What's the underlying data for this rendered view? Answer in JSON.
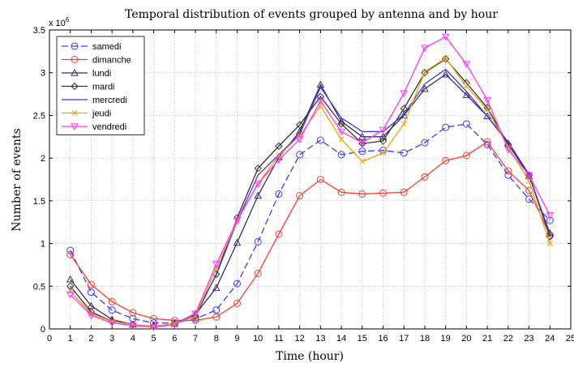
{
  "chart_data": {
    "type": "line",
    "title": "Temporal distribution of events grouped by antenna and by hour",
    "xlabel": "Time (hour)",
    "ylabel": "Number of events",
    "y_exponent": "x 10^6",
    "y_exponent_base": "x 10",
    "y_exponent_power": "6",
    "xlim": [
      0,
      25
    ],
    "ylim": [
      0,
      3.5
    ],
    "x_ticks": [
      0,
      1,
      2,
      3,
      4,
      5,
      6,
      7,
      8,
      9,
      10,
      11,
      12,
      13,
      14,
      15,
      16,
      17,
      18,
      19,
      20,
      21,
      22,
      23,
      24,
      25
    ],
    "y_ticks": [
      0,
      0.5,
      1,
      1.5,
      2,
      2.5,
      3,
      3.5
    ],
    "y_tick_labels": [
      "0",
      "0.5",
      "1",
      "1.5",
      "2",
      "2.5",
      "3",
      "3.5"
    ],
    "grid": true,
    "legend_position": "top-left",
    "x": [
      1,
      2,
      3,
      4,
      5,
      6,
      7,
      8,
      9,
      10,
      11,
      12,
      13,
      14,
      15,
      16,
      17,
      18,
      19,
      20,
      21,
      22,
      23,
      24
    ],
    "series": [
      {
        "name": "samedi",
        "color": "#3a3aff",
        "marker": "circle",
        "dash": "8,4",
        "values": [
          0.92,
          0.43,
          0.22,
          0.12,
          0.07,
          0.07,
          0.12,
          0.22,
          0.53,
          1.02,
          1.58,
          2.04,
          2.21,
          2.04,
          2.08,
          2.09,
          2.06,
          2.18,
          2.36,
          2.4,
          2.16,
          1.8,
          1.52,
          1.27
        ]
      },
      {
        "name": "dimanche",
        "color": "#ff3b30",
        "marker": "circle",
        "dash": "",
        "values": [
          0.87,
          0.52,
          0.32,
          0.19,
          0.12,
          0.1,
          0.1,
          0.14,
          0.3,
          0.65,
          1.11,
          1.56,
          1.75,
          1.6,
          1.58,
          1.59,
          1.6,
          1.78,
          1.97,
          2.03,
          2.19,
          1.85,
          1.62,
          1.1
        ]
      },
      {
        "name": "lundi",
        "color": "#3a2a6a",
        "marker": "triangle-up",
        "dash": "",
        "values": [
          0.58,
          0.27,
          0.11,
          0.05,
          0.03,
          0.06,
          0.17,
          0.48,
          1.01,
          1.56,
          2.01,
          2.31,
          2.86,
          2.43,
          2.25,
          2.25,
          2.5,
          2.81,
          2.98,
          2.74,
          2.49,
          2.17,
          1.79,
          1.12
        ]
      },
      {
        "name": "mardi",
        "color": "#333333",
        "marker": "diamond",
        "dash": "",
        "values": [
          0.5,
          0.2,
          0.09,
          0.05,
          0.03,
          0.06,
          0.15,
          0.64,
          1.3,
          1.88,
          2.14,
          2.39,
          2.72,
          2.4,
          2.17,
          2.2,
          2.58,
          3.0,
          3.16,
          2.88,
          2.59,
          2.16,
          1.8,
          1.08
        ]
      },
      {
        "name": "mercredi",
        "color": "#3b3bd6",
        "marker": "none",
        "dash": "",
        "values": [
          0.44,
          0.18,
          0.09,
          0.05,
          0.03,
          0.06,
          0.18,
          0.63,
          1.26,
          1.8,
          2.04,
          2.28,
          2.83,
          2.47,
          2.31,
          2.31,
          2.51,
          2.87,
          3.04,
          2.78,
          2.49,
          2.19,
          1.81,
          1.1
        ]
      },
      {
        "name": "jeudi",
        "color": "#f0a000",
        "marker": "x",
        "dash": "",
        "values": [
          0.44,
          0.18,
          0.09,
          0.05,
          0.03,
          0.06,
          0.15,
          0.71,
          1.26,
          1.7,
          2.03,
          2.26,
          2.61,
          2.22,
          1.96,
          2.06,
          2.4,
          3.01,
          3.17,
          2.84,
          2.57,
          2.13,
          1.73,
          1.0
        ]
      },
      {
        "name": "vendredi",
        "color": "#ff33ff",
        "marker": "triangle-down",
        "dash": "",
        "values": [
          0.4,
          0.16,
          0.07,
          0.04,
          0.02,
          0.05,
          0.18,
          0.76,
          1.27,
          1.7,
          1.98,
          2.22,
          2.67,
          2.31,
          2.18,
          2.33,
          2.76,
          3.29,
          3.42,
          3.1,
          2.68,
          2.1,
          1.8,
          1.33
        ]
      }
    ]
  }
}
